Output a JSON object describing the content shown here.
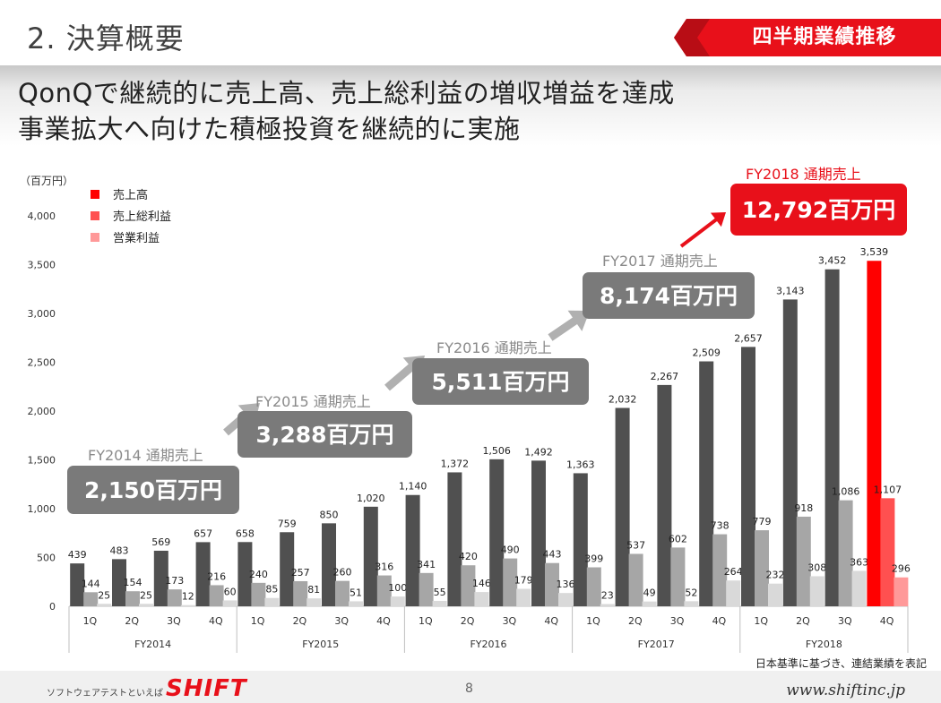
{
  "header": {
    "section_title": "2. 決算概要",
    "ribbon_label": "四半期業績推移",
    "ribbon_color": "#e8101a"
  },
  "headline": {
    "line1": "QonQで継続的に売上高、売上総利益の増収増益を達成",
    "line2": "事業拡大へ向けた積極投資を継続的に実施"
  },
  "callouts": [
    {
      "label": "FY2014 通期売上",
      "value": "2,150百万円",
      "style": "gray"
    },
    {
      "label": "FY2015 通期売上",
      "value": "3,288百万円",
      "style": "gray"
    },
    {
      "label": "FY2016 通期売上",
      "value": "5,511百万円",
      "style": "gray"
    },
    {
      "label": "FY2017 通期売上",
      "value": "8,174百万円",
      "style": "gray"
    },
    {
      "label": "FY2018 通期売上",
      "value": "12,792百万円",
      "style": "red"
    }
  ],
  "chart_data": {
    "type": "bar",
    "unit_label": "（百万円）",
    "ylim": [
      0,
      4000
    ],
    "yticks": [
      0,
      500,
      1000,
      1500,
      2000,
      2500,
      3000,
      3500,
      4000
    ],
    "legend_position": "top-left",
    "quarters": [
      "1Q",
      "2Q",
      "3Q",
      "4Q",
      "1Q",
      "2Q",
      "3Q",
      "4Q",
      "1Q",
      "2Q",
      "3Q",
      "4Q",
      "1Q",
      "2Q",
      "3Q",
      "4Q",
      "1Q",
      "2Q",
      "3Q",
      "4Q"
    ],
    "years": [
      "FY2014",
      "FY2015",
      "FY2016",
      "FY2017",
      "FY2018"
    ],
    "series": [
      {
        "name": "売上高",
        "values": [
          439,
          483,
          569,
          657,
          658,
          759,
          850,
          1020,
          1140,
          1372,
          1506,
          1492,
          1363,
          2032,
          2267,
          2509,
          2657,
          3143,
          3452,
          3539
        ]
      },
      {
        "name": "売上総利益",
        "values": [
          144,
          154,
          173,
          216,
          240,
          257,
          260,
          316,
          341,
          420,
          490,
          443,
          399,
          537,
          602,
          738,
          779,
          918,
          1086,
          1107
        ]
      },
      {
        "name": "営業利益",
        "values": [
          25,
          25,
          12,
          60,
          85,
          81,
          51,
          100,
          55,
          146,
          179,
          136,
          23,
          49,
          52,
          264,
          232,
          308,
          363,
          296
        ]
      }
    ],
    "colors": {
      "sales": "#505050",
      "gross": "#a6a6a6",
      "op": "#d9d9d9",
      "sales_hl": "#ff0000",
      "gross_hl": "#ff5050",
      "op_hl": "#ff9999",
      "legend": [
        "#ff0000",
        "#ff5050",
        "#ff9999"
      ]
    }
  },
  "note": "日本基準に基づき、連結業績を表記",
  "footer": {
    "tagline": "ソフトウェアテストといえば",
    "logo": "SHIFT",
    "page": "8",
    "url": "www.shiftinc.jp"
  }
}
